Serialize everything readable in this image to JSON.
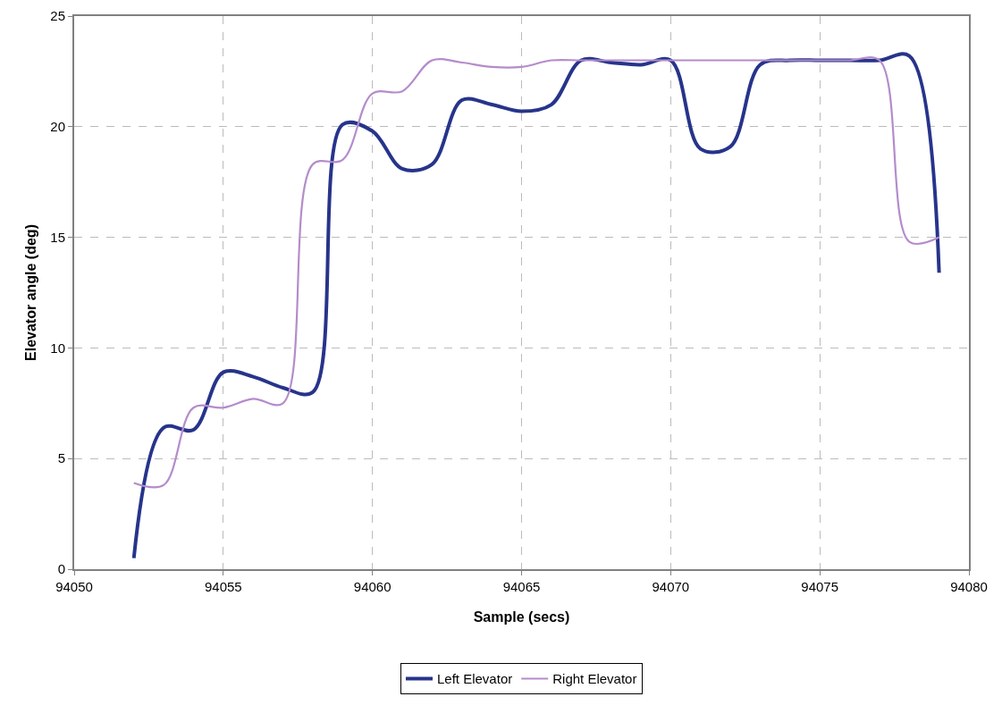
{
  "chart_data": {
    "type": "line",
    "xlabel": "Sample (secs)",
    "ylabel": "Elevator angle (deg)",
    "x": [
      94052,
      94053,
      94054,
      94055,
      94056,
      94057,
      94058,
      94059,
      94060,
      94061,
      94062,
      94063,
      94064,
      94065,
      94066,
      94067,
      94068,
      94069,
      94070,
      94071,
      94072,
      94073,
      94074,
      94075,
      94076,
      94077,
      94078,
      94079
    ],
    "series": [
      {
        "name": "Left Elevator",
        "color": "#27348b",
        "values": [
          0.5,
          6.4,
          6.3,
          8.9,
          8.7,
          8.2,
          8.0,
          20.1,
          19.8,
          18.1,
          18.3,
          21.2,
          21.0,
          20.7,
          21.0,
          23.0,
          22.9,
          22.8,
          23.0,
          19.0,
          19.1,
          22.8,
          23.0,
          23.0,
          23.0,
          23.0,
          23.2,
          13.4
        ]
      },
      {
        "name": "Right Elevator",
        "color": "#b48ccb",
        "values": [
          3.9,
          3.8,
          7.3,
          7.3,
          7.7,
          7.5,
          18.3,
          18.5,
          21.5,
          21.6,
          23.0,
          22.9,
          22.7,
          22.7,
          23.0,
          23.0,
          23.0,
          23.0,
          23.0,
          23.0,
          23.0,
          23.0,
          23.0,
          23.0,
          23.0,
          23.0,
          14.8,
          15.0
        ]
      }
    ],
    "xlim": [
      94050,
      94080
    ],
    "xticks": [
      94050,
      94055,
      94060,
      94065,
      94070,
      94075,
      94080
    ],
    "ylim": [
      0,
      25
    ],
    "yticks": [
      0,
      5,
      10,
      15,
      20,
      25
    ],
    "grid": true,
    "legend": "bottom",
    "marker": "none",
    "line_style": "solid"
  }
}
